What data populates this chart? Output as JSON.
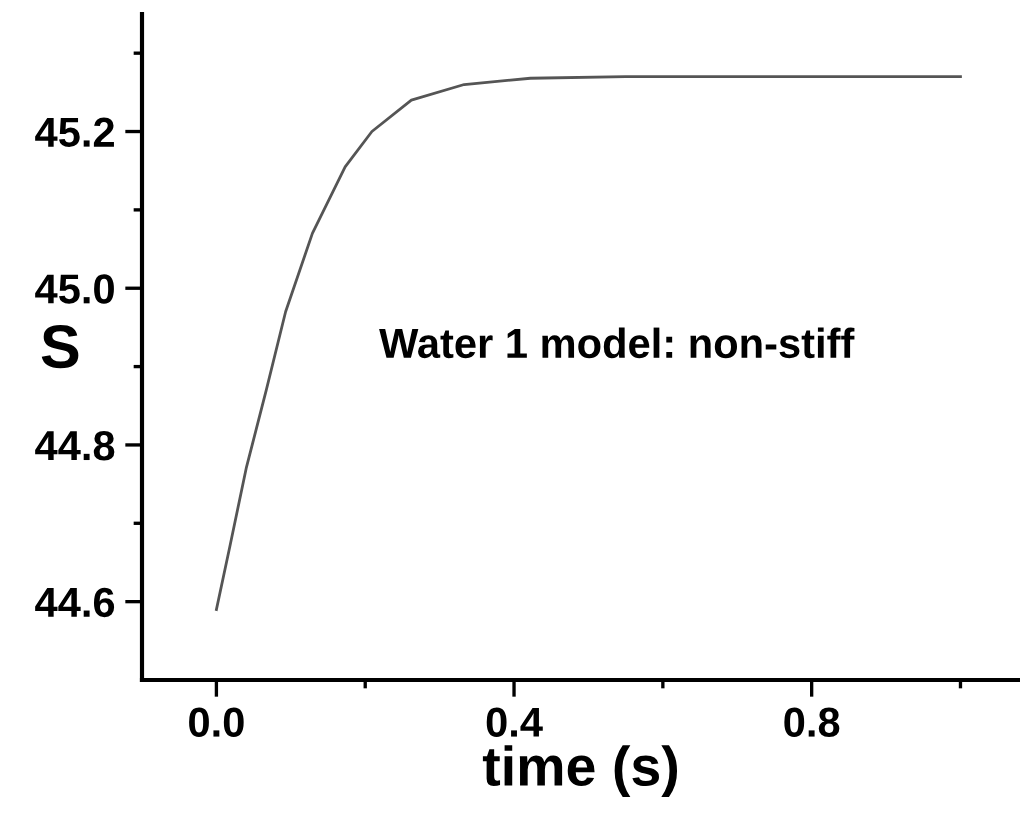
{
  "chart_data": {
    "type": "line",
    "xlabel": "time (s)",
    "ylabel": "S",
    "annotations": [
      "Water 1 model: non-stiff"
    ],
    "x": [
      0,
      0.018,
      0.04,
      0.067,
      0.093,
      0.129,
      0.173,
      0.209,
      0.262,
      0.333,
      0.422,
      0.55,
      0.7,
      0.85,
      1.0
    ],
    "series": [
      {
        "color": "#555555",
        "values": [
          44.59,
          44.67,
          44.77,
          44.87,
          44.97,
          45.07,
          45.155,
          45.2,
          45.24,
          45.26,
          45.268,
          45.27,
          45.27,
          45.27,
          45.27
        ]
      }
    ],
    "xlim": [
      -0.1,
      1.08
    ],
    "ylim": [
      44.5,
      45.35
    ],
    "xticks": [
      {
        "value": 0,
        "label": "0.0"
      },
      {
        "value": 0.2,
        "label": null
      },
      0.4,
      {
        "value": 0.6,
        "label": null
      },
      0.8,
      {
        "value": 1.0,
        "label": null
      }
    ],
    "yticks": [
      44.6,
      {
        "value": 44.7,
        "label": null
      },
      44.8,
      {
        "value": 44.9,
        "label": null
      },
      {
        "value": 45.0,
        "label": "45.0"
      },
      {
        "value": 45.1,
        "label": null
      },
      45.2,
      {
        "value": 45.3,
        "label": null
      }
    ],
    "grid": false,
    "legend": false,
    "marker": "none",
    "line_style": "solid"
  }
}
